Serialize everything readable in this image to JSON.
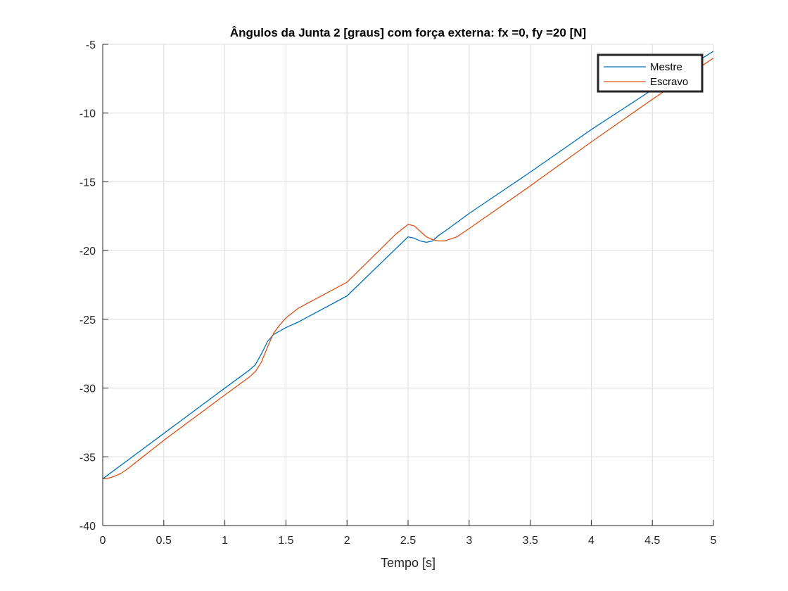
{
  "chart_data": {
    "type": "line",
    "title": "Ângulos da Junta 2 [graus] com força externa: fx =0, fy =20 [N]",
    "xlabel": "Tempo [s]",
    "ylabel": "",
    "xlim": [
      0,
      5
    ],
    "ylim": [
      -40,
      -5
    ],
    "xticks": [
      0,
      0.5,
      1,
      1.5,
      2,
      2.5,
      3,
      3.5,
      4,
      4.5,
      5
    ],
    "xtick_labels": [
      "0",
      "0.5",
      "1",
      "1.5",
      "2",
      "2.5",
      "3",
      "3.5",
      "4",
      "4.5",
      "5"
    ],
    "yticks": [
      -40,
      -35,
      -30,
      -25,
      -20,
      -15,
      -10,
      -5
    ],
    "ytick_labels": [
      "-40",
      "-35",
      "-30",
      "-25",
      "-20",
      "-15",
      "-10",
      "-5"
    ],
    "grid": true,
    "legend_position": "top-right",
    "series": [
      {
        "name": "Mestre",
        "color": "#0072BD",
        "x": [
          0,
          0.5,
          1.0,
          1.2,
          1.25,
          1.3,
          1.35,
          1.4,
          1.5,
          1.6,
          2.0,
          2.5,
          2.55,
          2.6,
          2.65,
          2.7,
          2.75,
          2.8,
          3.0,
          3.5,
          4.0,
          4.5,
          5.0
        ],
        "y": [
          -36.6,
          -33.3,
          -30.0,
          -28.7,
          -28.3,
          -27.5,
          -26.6,
          -26.1,
          -25.6,
          -25.2,
          -23.3,
          -19.0,
          -19.1,
          -19.3,
          -19.4,
          -19.3,
          -18.9,
          -18.6,
          -17.3,
          -14.3,
          -11.2,
          -8.3,
          -5.5
        ]
      },
      {
        "name": "Escravo",
        "color": "#D95319",
        "x": [
          0,
          0.05,
          0.1,
          0.15,
          0.2,
          0.3,
          0.5,
          1.0,
          1.2,
          1.25,
          1.3,
          1.35,
          1.4,
          1.45,
          1.5,
          1.6,
          2.0,
          2.4,
          2.5,
          2.55,
          2.6,
          2.65,
          2.7,
          2.75,
          2.8,
          2.9,
          3.0,
          3.5,
          4.0,
          4.5,
          5.0
        ],
        "y": [
          -36.6,
          -36.55,
          -36.4,
          -36.2,
          -35.9,
          -35.2,
          -33.8,
          -30.5,
          -29.2,
          -28.8,
          -28.1,
          -27.0,
          -26.0,
          -25.4,
          -24.9,
          -24.2,
          -22.3,
          -18.8,
          -18.1,
          -18.2,
          -18.6,
          -19.0,
          -19.2,
          -19.3,
          -19.3,
          -19.0,
          -18.4,
          -15.3,
          -12.1,
          -9.0,
          -6.0
        ]
      }
    ]
  }
}
